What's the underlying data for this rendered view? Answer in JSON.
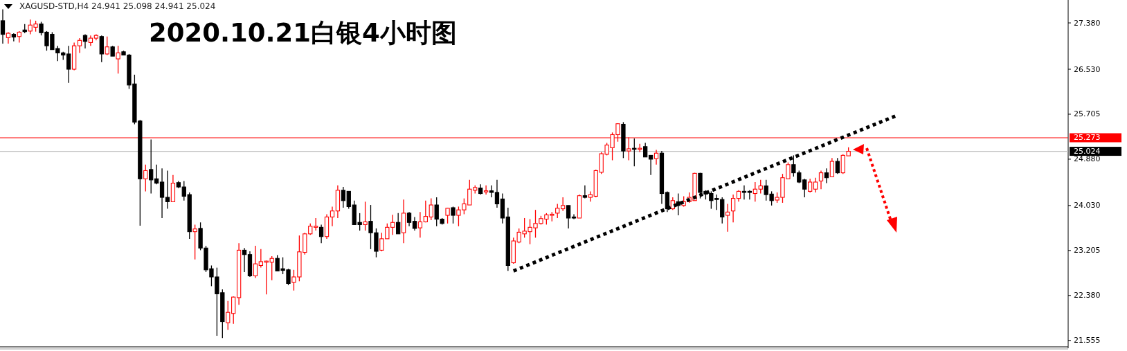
{
  "chart_data": {
    "type": "candlestick",
    "title": "2020.10.21白银4小时图",
    "subtitle": "XAGUSD-STD,H4  24.941 25.098 24.941 25.024",
    "categories": [
      null,
      null,
      null,
      null,
      null,
      null,
      null,
      null,
      null,
      null,
      null,
      null,
      null,
      null,
      null,
      null,
      null,
      null,
      null,
      null,
      null,
      null,
      null,
      null,
      null,
      null,
      null,
      null,
      null,
      null,
      null,
      null,
      null,
      null,
      null,
      null,
      null,
      null,
      null,
      null,
      null,
      null,
      null,
      null,
      null,
      null,
      null,
      null,
      null,
      null,
      null,
      null,
      null,
      null,
      null,
      null,
      null,
      null,
      null,
      null,
      null,
      null,
      null,
      null,
      null,
      null,
      null,
      null,
      null,
      null,
      null,
      null,
      null,
      null,
      null,
      null,
      null,
      null,
      null,
      null,
      null,
      null,
      null,
      null,
      null,
      null,
      null,
      null,
      null,
      null,
      null,
      null,
      null,
      null,
      null,
      null,
      null,
      null,
      null,
      null,
      null,
      null,
      null,
      null,
      null,
      null,
      null,
      null,
      null,
      null,
      null,
      null,
      null,
      null,
      null,
      null,
      null,
      null,
      null,
      null,
      null,
      null,
      null,
      null,
      null,
      null,
      null,
      null,
      null,
      null,
      null,
      null,
      null,
      null,
      null,
      null,
      null,
      null,
      null,
      null,
      null,
      null,
      null,
      null,
      null,
      null,
      null,
      null,
      null,
      null,
      null,
      null,
      null,
      null,
      null,
      null,
      null,
      null,
      null,
      null,
      null,
      null,
      null,
      null,
      null,
      null,
      null,
      null,
      null,
      null,
      null,
      null,
      null,
      null,
      null,
      null,
      null,
      null,
      null,
      null,
      null,
      null,
      null,
      null,
      null,
      null,
      null,
      null,
      null,
      null,
      null,
      null,
      null,
      null
    ],
    "ohlc": [
      [
        27.42,
        27.63,
        27.0,
        27.17
      ],
      [
        27.11,
        27.21,
        27.0,
        27.19
      ],
      [
        27.17,
        27.19,
        27.04,
        27.12
      ],
      [
        27.13,
        27.23,
        27.02,
        27.21
      ],
      [
        27.25,
        27.36,
        27.19,
        27.22
      ],
      [
        27.23,
        27.44,
        27.17,
        27.34
      ],
      [
        27.3,
        27.42,
        27.22,
        27.36
      ],
      [
        27.36,
        27.4,
        27.15,
        27.2
      ],
      [
        27.21,
        27.23,
        26.87,
        26.96
      ],
      [
        27.17,
        27.21,
        26.89,
        26.89
      ],
      [
        26.91,
        26.96,
        26.68,
        26.83
      ],
      [
        26.83,
        26.85,
        26.7,
        26.79
      ],
      [
        26.81,
        26.96,
        26.28,
        26.53
      ],
      [
        26.53,
        27.02,
        26.51,
        26.96
      ],
      [
        26.96,
        27.1,
        26.83,
        27.06
      ],
      [
        27.15,
        27.17,
        26.91,
        27.04
      ],
      [
        27.02,
        27.15,
        26.96,
        27.1
      ],
      [
        27.1,
        27.17,
        27.06,
        27.15
      ],
      [
        27.13,
        27.15,
        26.66,
        26.81
      ],
      [
        26.81,
        27.13,
        26.79,
        26.94
      ],
      [
        26.94,
        26.96,
        26.77,
        26.77
      ],
      [
        26.72,
        26.96,
        26.45,
        26.83
      ],
      [
        26.85,
        26.87,
        26.79,
        26.79
      ],
      [
        26.79,
        26.81,
        26.17,
        26.24
      ],
      [
        26.26,
        26.43,
        25.52,
        25.56
      ],
      [
        25.58,
        25.6,
        23.66,
        24.52
      ],
      [
        24.52,
        24.78,
        24.29,
        24.67
      ],
      [
        24.69,
        25.24,
        24.25,
        24.5
      ],
      [
        24.52,
        24.78,
        24.42,
        24.44
      ],
      [
        24.46,
        24.71,
        23.8,
        24.18
      ],
      [
        24.18,
        24.67,
        23.97,
        24.1
      ],
      [
        24.1,
        24.59,
        24.1,
        24.44
      ],
      [
        24.45,
        24.48,
        24.35,
        24.37
      ],
      [
        24.37,
        24.48,
        24.12,
        24.2
      ],
      [
        24.23,
        24.27,
        23.42,
        23.55
      ],
      [
        23.55,
        23.68,
        23.04,
        23.6
      ],
      [
        23.61,
        23.72,
        23.21,
        23.25
      ],
      [
        23.25,
        23.29,
        22.81,
        22.85
      ],
      [
        22.87,
        22.93,
        22.55,
        22.72
      ],
      [
        22.72,
        22.89,
        21.64,
        22.41
      ],
      [
        22.43,
        22.49,
        21.6,
        21.9
      ],
      [
        21.88,
        22.28,
        21.75,
        22.07
      ],
      [
        22.05,
        22.36,
        21.86,
        22.35
      ],
      [
        22.34,
        23.34,
        22.21,
        23.21
      ],
      [
        23.21,
        23.25,
        22.81,
        23.13
      ],
      [
        23.13,
        23.19,
        22.72,
        22.74
      ],
      [
        22.74,
        23.29,
        22.7,
        22.96
      ],
      [
        22.93,
        23.23,
        22.89,
        23.0
      ],
      [
        22.99,
        23.02,
        22.4,
        23.01
      ],
      [
        22.99,
        23.1,
        22.66,
        23.06
      ],
      [
        23.06,
        23.12,
        22.83,
        22.83
      ],
      [
        22.87,
        23.08,
        22.77,
        22.84
      ],
      [
        22.85,
        22.87,
        22.57,
        22.6
      ],
      [
        22.62,
        22.85,
        22.47,
        22.72
      ],
      [
        22.72,
        23.48,
        22.64,
        23.18
      ],
      [
        23.17,
        23.53,
        23.13,
        23.51
      ],
      [
        23.51,
        23.7,
        23.49,
        23.65
      ],
      [
        23.63,
        23.8,
        23.57,
        23.65
      ],
      [
        23.63,
        23.68,
        23.34,
        23.46
      ],
      [
        23.46,
        23.87,
        23.42,
        23.82
      ],
      [
        23.82,
        24.01,
        23.65,
        23.93
      ],
      [
        23.93,
        24.4,
        23.8,
        24.31
      ],
      [
        24.31,
        24.37,
        23.99,
        24.12
      ],
      [
        24.29,
        24.29,
        23.97,
        24.01
      ],
      [
        24.04,
        24.12,
        23.68,
        23.68
      ],
      [
        23.72,
        23.89,
        23.57,
        23.68
      ],
      [
        23.68,
        24.1,
        23.57,
        23.73
      ],
      [
        23.74,
        24.04,
        23.23,
        23.53
      ],
      [
        23.53,
        23.61,
        23.08,
        23.19
      ],
      [
        23.21,
        23.53,
        23.19,
        23.42
      ],
      [
        23.42,
        23.7,
        23.42,
        23.63
      ],
      [
        23.63,
        23.86,
        23.49,
        23.72
      ],
      [
        23.72,
        23.89,
        23.51,
        23.51
      ],
      [
        23.53,
        24.14,
        23.34,
        23.89
      ],
      [
        23.89,
        23.91,
        23.65,
        23.72
      ],
      [
        23.74,
        23.82,
        23.57,
        23.61
      ],
      [
        23.62,
        23.91,
        23.44,
        23.73
      ],
      [
        23.73,
        24.12,
        23.72,
        23.83
      ],
      [
        23.82,
        24.16,
        23.76,
        24.04
      ],
      [
        24.04,
        24.18,
        23.65,
        23.78
      ],
      [
        23.78,
        23.8,
        23.68,
        23.7
      ],
      [
        23.85,
        23.99,
        23.7,
        23.98
      ],
      [
        23.99,
        24.01,
        23.7,
        23.85
      ],
      [
        23.85,
        24.01,
        23.65,
        23.95
      ],
      [
        23.95,
        24.16,
        23.87,
        24.06
      ],
      [
        24.04,
        24.5,
        24.04,
        24.33
      ],
      [
        24.31,
        24.4,
        24.25,
        24.36
      ],
      [
        24.35,
        24.42,
        24.23,
        24.25
      ],
      [
        24.28,
        24.4,
        24.23,
        24.3
      ],
      [
        24.3,
        24.4,
        24.18,
        24.27
      ],
      [
        24.27,
        24.5,
        23.99,
        24.06
      ],
      [
        24.15,
        24.25,
        23.7,
        23.8
      ],
      [
        23.82,
        23.99,
        22.83,
        22.93
      ],
      [
        22.98,
        23.44,
        22.96,
        23.38
      ],
      [
        23.36,
        23.61,
        23.34,
        23.54
      ],
      [
        23.51,
        23.8,
        23.44,
        23.56
      ],
      [
        23.55,
        23.78,
        23.32,
        23.63
      ],
      [
        23.62,
        23.95,
        23.44,
        23.7
      ],
      [
        23.7,
        23.84,
        23.68,
        23.79
      ],
      [
        23.78,
        23.89,
        23.68,
        23.86
      ],
      [
        23.85,
        23.91,
        23.74,
        23.87
      ],
      [
        23.89,
        24.06,
        23.8,
        23.98
      ],
      [
        23.97,
        24.18,
        23.93,
        24.03
      ],
      [
        24.03,
        24.03,
        23.61,
        23.8
      ],
      [
        23.82,
        23.87,
        23.78,
        23.8
      ],
      [
        23.8,
        24.23,
        23.8,
        24.21
      ],
      [
        24.21,
        24.4,
        24.16,
        24.18
      ],
      [
        24.18,
        24.29,
        24.1,
        24.23
      ],
      [
        24.2,
        24.69,
        24.18,
        24.67
      ],
      [
        24.64,
        25.01,
        24.61,
        24.98
      ],
      [
        24.97,
        25.18,
        24.95,
        25.14
      ],
      [
        25.09,
        25.37,
        24.86,
        25.33
      ],
      [
        25.33,
        25.54,
        25.2,
        25.53
      ],
      [
        25.52,
        25.56,
        24.9,
        25.03
      ],
      [
        25.03,
        25.28,
        24.86,
        25.07
      ],
      [
        25.08,
        25.26,
        24.75,
        25.06
      ],
      [
        25.06,
        25.16,
        25.01,
        25.08
      ],
      [
        25.11,
        25.18,
        24.92,
        24.92
      ],
      [
        24.95,
        24.95,
        24.59,
        24.88
      ],
      [
        24.89,
        25.05,
        24.78,
        24.99
      ],
      [
        24.99,
        25.03,
        24.06,
        24.25
      ],
      [
        24.27,
        24.29,
        23.91,
        23.97
      ],
      [
        23.97,
        24.18,
        23.95,
        24.12
      ],
      [
        24.1,
        24.25,
        23.85,
        24.03
      ],
      [
        24.03,
        24.2,
        24.01,
        24.1
      ],
      [
        24.1,
        24.27,
        24.08,
        24.18
      ],
      [
        24.12,
        24.63,
        24.12,
        24.62
      ],
      [
        24.62,
        24.63,
        24.16,
        24.27
      ],
      [
        24.29,
        24.31,
        24.14,
        24.24
      ],
      [
        24.25,
        24.29,
        23.97,
        24.12
      ],
      [
        24.16,
        24.23,
        23.95,
        24.14
      ],
      [
        24.14,
        24.18,
        23.7,
        23.82
      ],
      [
        23.85,
        24.06,
        23.55,
        23.91
      ],
      [
        23.93,
        24.23,
        23.72,
        24.16
      ],
      [
        24.16,
        24.31,
        24.1,
        24.29
      ],
      [
        24.29,
        24.4,
        24.14,
        24.27
      ],
      [
        24.29,
        24.31,
        24.14,
        24.27
      ],
      [
        24.25,
        24.46,
        24.1,
        24.33
      ],
      [
        24.33,
        24.5,
        24.25,
        24.39
      ],
      [
        24.39,
        24.5,
        24.12,
        24.23
      ],
      [
        24.24,
        24.29,
        24.03,
        24.12
      ],
      [
        24.13,
        24.27,
        24.08,
        24.18
      ],
      [
        24.18,
        24.61,
        24.08,
        24.54
      ],
      [
        24.52,
        24.82,
        24.52,
        24.78
      ],
      [
        24.78,
        24.95,
        24.56,
        24.63
      ],
      [
        24.63,
        24.67,
        24.44,
        24.46
      ],
      [
        24.5,
        24.52,
        24.18,
        24.33
      ],
      [
        24.29,
        24.52,
        24.27,
        24.46
      ],
      [
        24.33,
        24.54,
        24.27,
        24.46
      ],
      [
        24.48,
        24.67,
        24.33,
        24.63
      ],
      [
        24.63,
        24.71,
        24.44,
        24.54
      ],
      [
        24.56,
        24.9,
        24.56,
        24.84
      ],
      [
        24.84,
        24.9,
        24.61,
        24.63
      ],
      [
        24.63,
        24.97,
        24.61,
        24.95
      ],
      [
        24.941,
        25.098,
        24.941,
        25.024
      ],
      null,
      null,
      null,
      null,
      null,
      null,
      null,
      null,
      null,
      null,
      null,
      null,
      null,
      null,
      null,
      null,
      null,
      null,
      null,
      null,
      null,
      null,
      null,
      null,
      null,
      null,
      null,
      null,
      null,
      null,
      null,
      null,
      null,
      null,
      null,
      null,
      null,
      null,
      null
    ],
    "series": [
      {
        "type": "line",
        "values": [
          null,
          null,
          null,
          null,
          null,
          null,
          null,
          null,
          null,
          null,
          null,
          null,
          null,
          null,
          null,
          null,
          null,
          null,
          null,
          null,
          null,
          null,
          null,
          null,
          null,
          null,
          null,
          null,
          null,
          null,
          null,
          null,
          null,
          null,
          null,
          null,
          null,
          null,
          null,
          null,
          null,
          null,
          null,
          null,
          null,
          null,
          null,
          null,
          null,
          null,
          null,
          null,
          null,
          null,
          null,
          null,
          null,
          null,
          null,
          null,
          null,
          null,
          null,
          null,
          null,
          null,
          null,
          null,
          null,
          null,
          null,
          null,
          null,
          null,
          null,
          null,
          null,
          null,
          null,
          null,
          null,
          null,
          null,
          null,
          null,
          null,
          null,
          null,
          null,
          null,
          null,
          null,
          null,
          22.83,
          null,
          null,
          null,
          null,
          null,
          null,
          null,
          null,
          null,
          null,
          null,
          null,
          null,
          null,
          null,
          null,
          null,
          null,
          null,
          null,
          null,
          null,
          null,
          null,
          null,
          null,
          null,
          null,
          null,
          null,
          null,
          null,
          null,
          null,
          null,
          null,
          null,
          null,
          null,
          null,
          null,
          null,
          null,
          null,
          null,
          null,
          null,
          null,
          null,
          null,
          null,
          null,
          null,
          null,
          null,
          null,
          null,
          null,
          null,
          null,
          null,
          null,
          null,
          null,
          null,
          null,
          null,
          null,
          null,
          25.69,
          null,
          null,
          null,
          null,
          null,
          null,
          null,
          null,
          null,
          null,
          null,
          null,
          null,
          null,
          null,
          null,
          null,
          null,
          null,
          null,
          null,
          null,
          null,
          null,
          null,
          null,
          null,
          null,
          null,
          null
        ],
        "color": "#000000",
        "line_style": "dotted"
      }
    ],
    "ylim": [
      21.45,
      27.8
    ],
    "yticks": [
      21.555,
      {
        "value": 22.38,
        "label": "22.380"
      },
      23.205,
      {
        "value": 24.03,
        "label": "24.030"
      },
      {
        "value": 24.88,
        "label": "24.880"
      },
      25.705,
      {
        "value": 26.53,
        "label": "26.530"
      },
      {
        "value": 27.38,
        "label": "27.380"
      }
    ],
    "tick_labels": "y",
    "ref_lines": [
      {
        "axis": "y",
        "value": 25.273,
        "label": "25.273",
        "color": "#ff0000"
      },
      {
        "axis": "y",
        "value": 25.024,
        "label": "25.024",
        "color": "#c0c0c0"
      }
    ]
  }
}
